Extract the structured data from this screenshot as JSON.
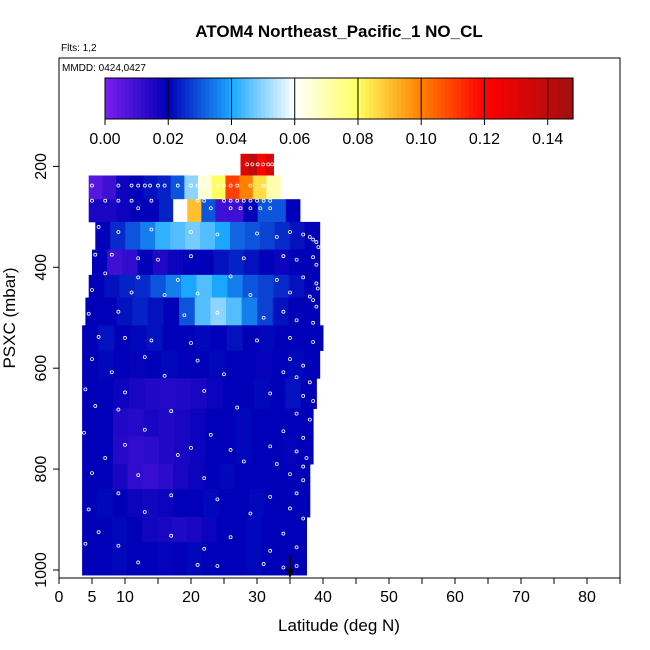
{
  "chart_data": {
    "type": "heatmap",
    "title": "ATOM4 Northeast_Pacific_1 NO_CL",
    "annotations": [
      "Flts: 1,2",
      "MMDD: 0424,0427"
    ],
    "xlabel": "Latitude (deg N)",
    "ylabel": "PSXC (mbar)",
    "xlim": [
      0,
      85
    ],
    "ylim": [
      1010,
      0
    ],
    "x_ticks": [
      0,
      5,
      10,
      20,
      30,
      40,
      50,
      60,
      70,
      80
    ],
    "y_ticks": [
      200,
      400,
      600,
      800,
      1000
    ],
    "colorbar": {
      "range": [
        0,
        0.148
      ],
      "ticks": [
        "0.00",
        "0.02",
        "0.04",
        "0.06",
        "0.08",
        "0.10",
        "0.12",
        "0.14"
      ],
      "colors": [
        "#7a1ff0",
        "#0000b8",
        "#1aa8ff",
        "#ffffff",
        "#ffff60",
        "#ff8000",
        "#ff0000",
        "#a01010"
      ]
    },
    "arrow_marker": {
      "x": 35
    },
    "bands": [
      {
        "p_top": 175,
        "p_bot": 218,
        "x0": 27.5,
        "x1": 32.5,
        "values": [
          0.13,
          0.14,
          0.12,
          0.13
        ]
      },
      {
        "p_top": 218,
        "p_bot": 265,
        "x0": 4.5,
        "x1": 33.5,
        "values": [
          0.006,
          0.01,
          0.018,
          0.02,
          0.022,
          0.024,
          0.03,
          0.05,
          0.065,
          0.08,
          0.11,
          0.1,
          0.085,
          0.07
        ]
      },
      {
        "p_top": 265,
        "p_bot": 310,
        "x0": 4.5,
        "x1": 36.5,
        "values": [
          0.016,
          0.016,
          0.018,
          0.02,
          0.02,
          0.024,
          0.06,
          0.09,
          0.03,
          0.01,
          0.01,
          0.02,
          0.03,
          0.03,
          0.02
        ]
      },
      {
        "p_top": 310,
        "p_bot": 365,
        "x0": 5.5,
        "x1": 39.5,
        "values": [
          0.02,
          0.025,
          0.03,
          0.035,
          0.042,
          0.045,
          0.048,
          0.045,
          0.04,
          0.032,
          0.03,
          0.028,
          0.025,
          0.022,
          0.02
        ]
      },
      {
        "p_top": 365,
        "p_bot": 415,
        "x0": 5,
        "x1": 39.5,
        "values": [
          0.02,
          0.01,
          0.012,
          0.02,
          0.015,
          0.018,
          0.02,
          0.02,
          0.022,
          0.024,
          0.022,
          0.02,
          0.018,
          0.02,
          0.02
        ]
      },
      {
        "p_top": 415,
        "p_bot": 460,
        "x0": 4.5,
        "x1": 39.5,
        "values": [
          0.02,
          0.022,
          0.024,
          0.025,
          0.03,
          0.035,
          0.04,
          0.045,
          0.04,
          0.035,
          0.03,
          0.028,
          0.025,
          0.022,
          0.02
        ]
      },
      {
        "p_top": 460,
        "p_bot": 515,
        "x0": 4,
        "x1": 39.5,
        "values": [
          0.02,
          0.02,
          0.022,
          0.024,
          0.022,
          0.02,
          0.03,
          0.045,
          0.05,
          0.045,
          0.035,
          0.028,
          0.022,
          0.02,
          0.02
        ]
      },
      {
        "p_top": 515,
        "p_bot": 565,
        "x0": 3.5,
        "x1": 40,
        "values": [
          0.02,
          0.022,
          0.02,
          0.021,
          0.022,
          0.02,
          0.02,
          0.021,
          0.02,
          0.022,
          0.02,
          0.021,
          0.02,
          0.02,
          0.02
        ]
      },
      {
        "p_top": 565,
        "p_bot": 620,
        "x0": 3.5,
        "x1": 39.5,
        "values": [
          0.02,
          0.021,
          0.02,
          0.019,
          0.02,
          0.021,
          0.02,
          0.02,
          0.021,
          0.02,
          0.02,
          0.019,
          0.02,
          0.021,
          0.02
        ]
      },
      {
        "p_top": 620,
        "p_bot": 680,
        "x0": 3.5,
        "x1": 39,
        "values": [
          0.02,
          0.02,
          0.018,
          0.016,
          0.015,
          0.014,
          0.015,
          0.016,
          0.018,
          0.02,
          0.02,
          0.021,
          0.02,
          0.022,
          0.02
        ]
      },
      {
        "p_top": 680,
        "p_bot": 735,
        "x0": 3.5,
        "x1": 38.5,
        "values": [
          0.02,
          0.02,
          0.015,
          0.014,
          0.016,
          0.015,
          0.016,
          0.018,
          0.02,
          0.02,
          0.021,
          0.02,
          0.02,
          0.02,
          0.02
        ]
      },
      {
        "p_top": 735,
        "p_bot": 790,
        "x0": 3.5,
        "x1": 38.5,
        "values": [
          0.02,
          0.02,
          0.014,
          0.012,
          0.013,
          0.015,
          0.016,
          0.018,
          0.02,
          0.02,
          0.021,
          0.02,
          0.02,
          0.019,
          0.02
        ]
      },
      {
        "p_top": 790,
        "p_bot": 840,
        "x0": 3.5,
        "x1": 38,
        "values": [
          0.02,
          0.02,
          0.016,
          0.012,
          0.011,
          0.013,
          0.016,
          0.018,
          0.02,
          0.021,
          0.02,
          0.02,
          0.02,
          0.02,
          0.02
        ]
      },
      {
        "p_top": 840,
        "p_bot": 895,
        "x0": 3.5,
        "x1": 38,
        "values": [
          0.02,
          0.021,
          0.02,
          0.018,
          0.017,
          0.018,
          0.02,
          0.02,
          0.021,
          0.02,
          0.02,
          0.021,
          0.02,
          0.02,
          0.02
        ]
      },
      {
        "p_top": 895,
        "p_bot": 945,
        "x0": 3.5,
        "x1": 37.5,
        "values": [
          0.02,
          0.02,
          0.021,
          0.02,
          0.017,
          0.016,
          0.015,
          0.016,
          0.018,
          0.02,
          0.02,
          0.021,
          0.02,
          0.02,
          0.02
        ]
      },
      {
        "p_top": 945,
        "p_bot": 1010,
        "x0": 3.5,
        "x1": 37.5,
        "values": [
          0.02,
          0.02,
          0.021,
          0.02,
          0.02,
          0.019,
          0.02,
          0.021,
          0.02,
          0.02,
          0.02,
          0.021,
          0.02,
          0.02,
          0.02
        ]
      }
    ],
    "points": [
      [
        28.5,
        196
      ],
      [
        29.3,
        196
      ],
      [
        30.1,
        196
      ],
      [
        30.9,
        196
      ],
      [
        31.7,
        196
      ],
      [
        32.3,
        196
      ],
      [
        5,
        238
      ],
      [
        9,
        238
      ],
      [
        11,
        238
      ],
      [
        12,
        238
      ],
      [
        13,
        238
      ],
      [
        13.8,
        238
      ],
      [
        15,
        238
      ],
      [
        16,
        238
      ],
      [
        18,
        238
      ],
      [
        20,
        238
      ],
      [
        21,
        238
      ],
      [
        22,
        238
      ],
      [
        24,
        238
      ],
      [
        25,
        238
      ],
      [
        26,
        238
      ],
      [
        27,
        238
      ],
      [
        29,
        238
      ],
      [
        31,
        238
      ],
      [
        5,
        268
      ],
      [
        7,
        268
      ],
      [
        9,
        268
      ],
      [
        11,
        268
      ],
      [
        14,
        268
      ],
      [
        21,
        268
      ],
      [
        22,
        268
      ],
      [
        25,
        268
      ],
      [
        26,
        268
      ],
      [
        27,
        268
      ],
      [
        28,
        268
      ],
      [
        29,
        268
      ],
      [
        30,
        268
      ],
      [
        31,
        268
      ],
      [
        32,
        268
      ],
      [
        12,
        283
      ],
      [
        18,
        283
      ],
      [
        23,
        283
      ],
      [
        26,
        283
      ],
      [
        27.5,
        283
      ],
      [
        29,
        283
      ],
      [
        30.5,
        283
      ],
      [
        32,
        283
      ],
      [
        6,
        320
      ],
      [
        9,
        330
      ],
      [
        14,
        325
      ],
      [
        20,
        330
      ],
      [
        24,
        335
      ],
      [
        30,
        333
      ],
      [
        33,
        340
      ],
      [
        35,
        330
      ],
      [
        37,
        335
      ],
      [
        38,
        340
      ],
      [
        38.5,
        345
      ],
      [
        39,
        350
      ],
      [
        39.3,
        360
      ],
      [
        5.5,
        375
      ],
      [
        8,
        375
      ],
      [
        12,
        382
      ],
      [
        15,
        385
      ],
      [
        20,
        378
      ],
      [
        28,
        382
      ],
      [
        34,
        378
      ],
      [
        36,
        385
      ],
      [
        38.5,
        380
      ],
      [
        39,
        395
      ],
      [
        7,
        412
      ],
      [
        12,
        420
      ],
      [
        18,
        425
      ],
      [
        26,
        418
      ],
      [
        33,
        425
      ],
      [
        37,
        420
      ],
      [
        39,
        432
      ],
      [
        39.2,
        442
      ],
      [
        5,
        445
      ],
      [
        11,
        450
      ],
      [
        16,
        455
      ],
      [
        21,
        452
      ],
      [
        29,
        455
      ],
      [
        35,
        450
      ],
      [
        38,
        458
      ],
      [
        38.5,
        465
      ],
      [
        39,
        478
      ],
      [
        4.5,
        492
      ],
      [
        9,
        488
      ],
      [
        19,
        495
      ],
      [
        24,
        490
      ],
      [
        31,
        500
      ],
      [
        34,
        488
      ],
      [
        36,
        505
      ],
      [
        38.5,
        510
      ],
      [
        6,
        538
      ],
      [
        10,
        540
      ],
      [
        14,
        545
      ],
      [
        20,
        550
      ],
      [
        30,
        545
      ],
      [
        35,
        540
      ],
      [
        38.5,
        548
      ],
      [
        5,
        582
      ],
      [
        13,
        578
      ],
      [
        21,
        585
      ],
      [
        35,
        582
      ],
      [
        37,
        595
      ],
      [
        8,
        608
      ],
      [
        16,
        615
      ],
      [
        25,
        612
      ],
      [
        34,
        608
      ],
      [
        36,
        618
      ],
      [
        38,
        628
      ],
      [
        4,
        642
      ],
      [
        10,
        648
      ],
      [
        22,
        645
      ],
      [
        32,
        650
      ],
      [
        37,
        655
      ],
      [
        38.5,
        665
      ],
      [
        5.5,
        675
      ],
      [
        9,
        682
      ],
      [
        17,
        685
      ],
      [
        27,
        678
      ],
      [
        36,
        690
      ],
      [
        38,
        702
      ],
      [
        3.8,
        728
      ],
      [
        13,
        722
      ],
      [
        23,
        732
      ],
      [
        34,
        725
      ],
      [
        37,
        738
      ],
      [
        10,
        752
      ],
      [
        20,
        758
      ],
      [
        26,
        762
      ],
      [
        32,
        755
      ],
      [
        36,
        765
      ],
      [
        37.5,
        778
      ],
      [
        7,
        778
      ],
      [
        18,
        772
      ],
      [
        28,
        785
      ],
      [
        33,
        790
      ],
      [
        37,
        795
      ],
      [
        5,
        808
      ],
      [
        12,
        812
      ],
      [
        22,
        818
      ],
      [
        35,
        810
      ],
      [
        37,
        822
      ],
      [
        9,
        848
      ],
      [
        17,
        852
      ],
      [
        24,
        860
      ],
      [
        32,
        855
      ],
      [
        36,
        848
      ],
      [
        4.5,
        880
      ],
      [
        13,
        885
      ],
      [
        29,
        888
      ],
      [
        35,
        878
      ],
      [
        37,
        898
      ],
      [
        6,
        925
      ],
      [
        17,
        932
      ],
      [
        26,
        935
      ],
      [
        34,
        928
      ],
      [
        4,
        948
      ],
      [
        9,
        952
      ],
      [
        22,
        958
      ],
      [
        32,
        962
      ],
      [
        36,
        955
      ],
      [
        12,
        985
      ],
      [
        21,
        990
      ],
      [
        24,
        992
      ],
      [
        31,
        988
      ],
      [
        34,
        995
      ],
      [
        36,
        992
      ]
    ]
  }
}
